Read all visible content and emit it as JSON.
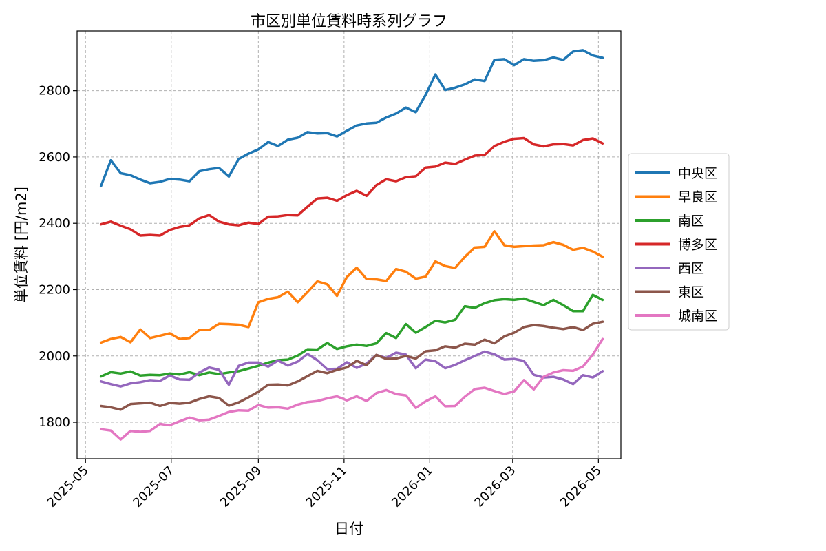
{
  "chart_data": {
    "type": "line",
    "title": "市区別単位賃料時系列グラフ",
    "xlabel": "日付",
    "ylabel": "単位賃料 [円/m2]",
    "x_start": "2025-05-12",
    "x_step_days": 7,
    "xlim": [
      "2025-04-25",
      "2026-05-17"
    ],
    "ylim": [
      1690,
      2980
    ],
    "x_ticks": [
      "2025-05",
      "2025-07",
      "2025-09",
      "2025-11",
      "2026-01",
      "2026-03",
      "2026-05"
    ],
    "y_ticks": [
      1800,
      2000,
      2200,
      2400,
      2600,
      2800
    ],
    "grid": true,
    "legend_position": "right",
    "series": [
      {
        "name": "中央区",
        "color": "#1f77b4",
        "values": [
          2512,
          2590,
          2551,
          2545,
          2532,
          2521,
          2525,
          2534,
          2532,
          2527,
          2557,
          2563,
          2567,
          2541,
          2594,
          2610,
          2623,
          2645,
          2633,
          2652,
          2658,
          2675,
          2671,
          2672,
          2662,
          2679,
          2695,
          2701,
          2703,
          2719,
          2731,
          2749,
          2735,
          2787,
          2849,
          2802,
          2809,
          2819,
          2834,
          2829,
          2893,
          2895,
          2877,
          2895,
          2890,
          2892,
          2900,
          2893,
          2918,
          2922,
          2906,
          2899
        ]
      },
      {
        "name": "早良区",
        "color": "#ff7f0e",
        "values": [
          2040,
          2051,
          2057,
          2041,
          2080,
          2054,
          2061,
          2068,
          2051,
          2054,
          2078,
          2078,
          2097,
          2096,
          2094,
          2087,
          2162,
          2172,
          2177,
          2194,
          2162,
          2193,
          2225,
          2216,
          2181,
          2238,
          2266,
          2232,
          2231,
          2226,
          2262,
          2254,
          2233,
          2239,
          2285,
          2271,
          2265,
          2299,
          2327,
          2329,
          2376,
          2334,
          2329,
          2331,
          2333,
          2334,
          2343,
          2335,
          2320,
          2326,
          2315,
          2299
        ]
      },
      {
        "name": "南区",
        "color": "#2ca02c",
        "values": [
          1938,
          1951,
          1947,
          1953,
          1941,
          1943,
          1942,
          1947,
          1944,
          1951,
          1942,
          1950,
          1945,
          1950,
          1954,
          1962,
          1970,
          1980,
          1987,
          1989,
          2001,
          2020,
          2019,
          2039,
          2021,
          2029,
          2034,
          2030,
          2038,
          2069,
          2054,
          2096,
          2070,
          2087,
          2106,
          2101,
          2109,
          2150,
          2145,
          2159,
          2168,
          2171,
          2169,
          2173,
          2163,
          2153,
          2169,
          2153,
          2135,
          2135,
          2184,
          2169
        ]
      },
      {
        "name": "博多区",
        "color": "#d62728",
        "values": [
          2397,
          2405,
          2393,
          2382,
          2363,
          2365,
          2363,
          2380,
          2389,
          2394,
          2415,
          2425,
          2405,
          2397,
          2394,
          2402,
          2398,
          2420,
          2421,
          2425,
          2424,
          2450,
          2475,
          2477,
          2468,
          2485,
          2498,
          2483,
          2515,
          2533,
          2527,
          2539,
          2542,
          2568,
          2571,
          2583,
          2579,
          2592,
          2604,
          2606,
          2633,
          2646,
          2655,
          2657,
          2638,
          2632,
          2638,
          2639,
          2635,
          2651,
          2656,
          2641
        ]
      },
      {
        "name": "西区",
        "color": "#9467bd",
        "values": [
          1923,
          1915,
          1908,
          1917,
          1921,
          1927,
          1925,
          1941,
          1929,
          1928,
          1950,
          1965,
          1958,
          1913,
          1970,
          1980,
          1980,
          1968,
          1986,
          1971,
          1983,
          2006,
          1987,
          1960,
          1961,
          1981,
          1964,
          1977,
          2003,
          1994,
          2010,
          2004,
          1963,
          1989,
          1984,
          1963,
          1973,
          1987,
          2000,
          2013,
          2005,
          1989,
          1991,
          1985,
          1943,
          1935,
          1937,
          1929,
          1915,
          1942,
          1935,
          1954
        ]
      },
      {
        "name": "東区",
        "color": "#8c564b",
        "values": [
          1849,
          1845,
          1838,
          1855,
          1857,
          1859,
          1849,
          1858,
          1856,
          1859,
          1870,
          1878,
          1873,
          1850,
          1860,
          1875,
          1892,
          1913,
          1914,
          1911,
          1923,
          1939,
          1955,
          1948,
          1958,
          1965,
          1985,
          1972,
          2003,
          1991,
          1992,
          2000,
          1992,
          2014,
          2017,
          2029,
          2025,
          2037,
          2034,
          2049,
          2038,
          2059,
          2070,
          2087,
          2093,
          2090,
          2085,
          2081,
          2087,
          2078,
          2097,
          2103
        ]
      },
      {
        "name": "城南区",
        "color": "#e377c2",
        "values": [
          1779,
          1775,
          1748,
          1774,
          1771,
          1774,
          1795,
          1791,
          1803,
          1814,
          1806,
          1808,
          1819,
          1831,
          1836,
          1835,
          1852,
          1844,
          1845,
          1841,
          1853,
          1861,
          1864,
          1872,
          1878,
          1866,
          1878,
          1864,
          1888,
          1897,
          1885,
          1881,
          1843,
          1863,
          1878,
          1848,
          1849,
          1877,
          1900,
          1904,
          1894,
          1885,
          1893,
          1927,
          1899,
          1937,
          1950,
          1957,
          1955,
          1968,
          2004,
          2051
        ]
      }
    ]
  }
}
